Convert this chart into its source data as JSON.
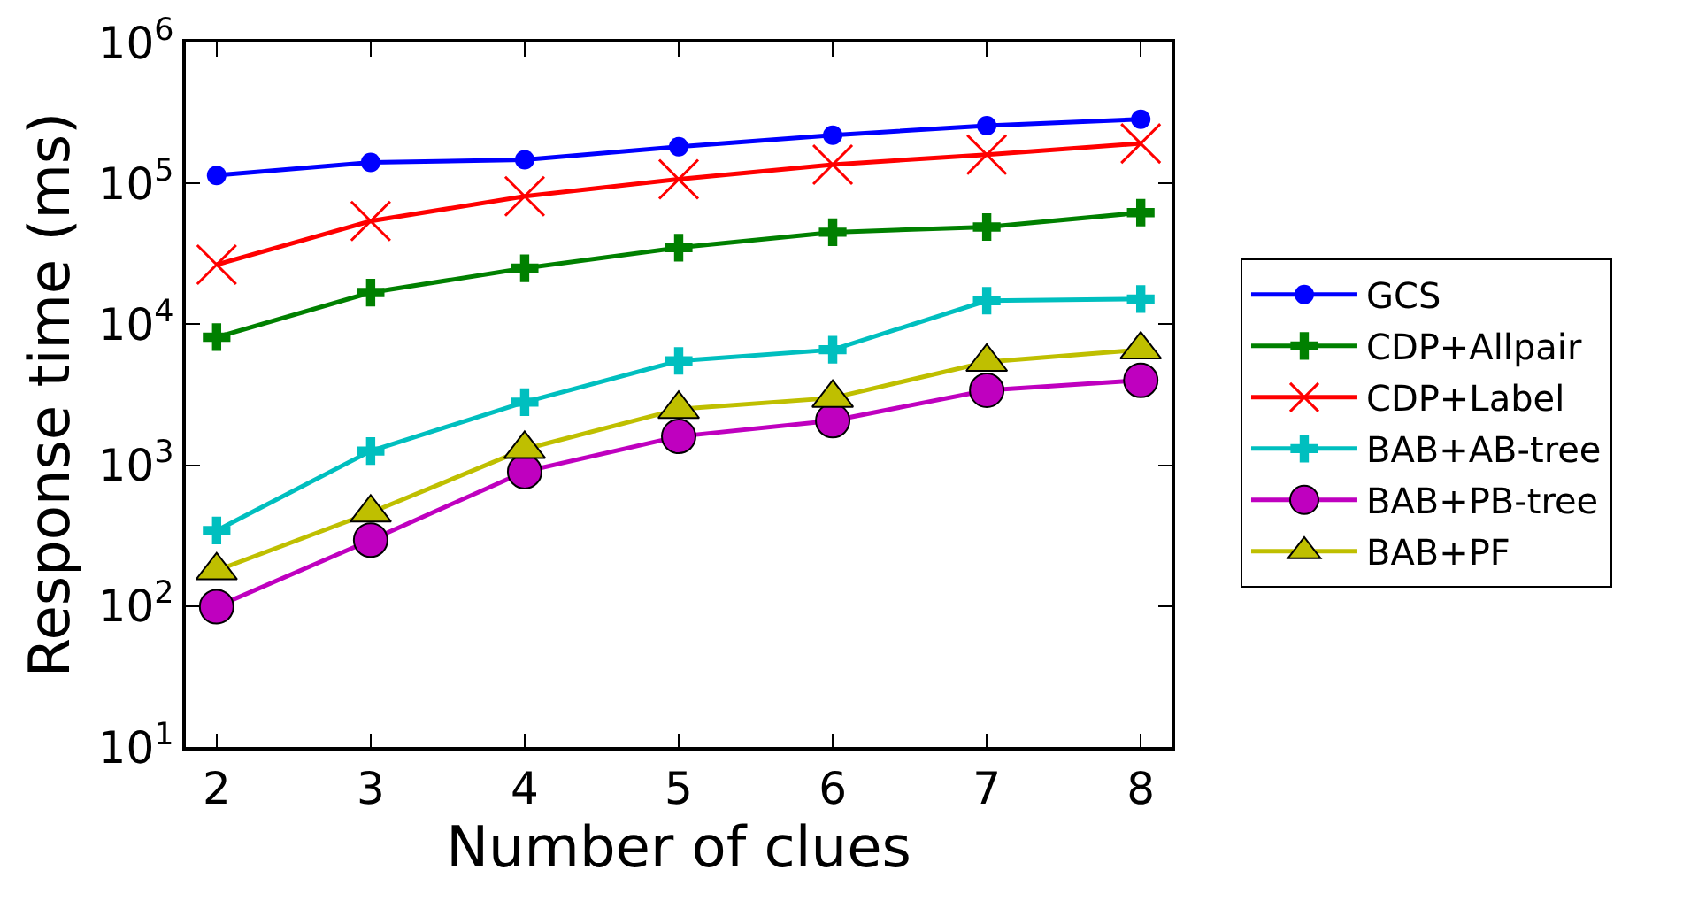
{
  "chart_data": {
    "type": "line",
    "xlabel": "Number of clues",
    "ylabel": "Response time (ms)",
    "log": "y",
    "x": [
      2,
      3,
      4,
      5,
      6,
      7,
      8
    ],
    "xlim": [
      1.8,
      8.2
    ],
    "xticks": [
      2,
      3,
      4,
      5,
      6,
      7,
      8
    ],
    "ylim": [
      10,
      1000000
    ],
    "yticks": [
      {
        "value": 10,
        "label": "10$^{1}$"
      },
      {
        "value": 100,
        "label": "10$^{2}$"
      },
      {
        "value": 1000,
        "label": "10$^{3}$"
      },
      {
        "value": 10000,
        "label": "10$^{4}$"
      },
      {
        "value": 100000,
        "label": "10$^{5}$"
      },
      {
        "value": 1000000,
        "label": "10$^{6}$"
      }
    ],
    "grid": false,
    "legend": "right",
    "line_style": "solid",
    "series": [
      {
        "name": "GCS",
        "color": "#0000ff",
        "marker": "circle",
        "values": [
          114000,
          141000,
          147000,
          182000,
          220000,
          257000,
          285000
        ]
      },
      {
        "name": "CDP+Allpair",
        "color": "#008000",
        "marker": "cross",
        "values": [
          8100,
          16800,
          25000,
          35000,
          45000,
          49000,
          62000
        ]
      },
      {
        "name": "CDP+Label",
        "color": "#ff0000",
        "marker": "x",
        "values": [
          26500,
          54000,
          81000,
          107000,
          136000,
          160000,
          192000
        ]
      },
      {
        "name": "BAB+AB-tree",
        "color": "#00bfbf",
        "marker": "cross",
        "values": [
          344,
          1260,
          2800,
          5500,
          6600,
          14700,
          15100
        ]
      },
      {
        "name": "BAB+PB-tree",
        "color": "#bf00bf",
        "marker": "circle",
        "values": [
          99,
          294,
          900,
          1600,
          2070,
          3400,
          4000
        ]
      },
      {
        "name": "BAB+PF",
        "color": "#bfbf00",
        "marker": "triangle",
        "values": [
          179,
          460,
          1300,
          2500,
          3000,
          5400,
          6600
        ]
      }
    ]
  }
}
